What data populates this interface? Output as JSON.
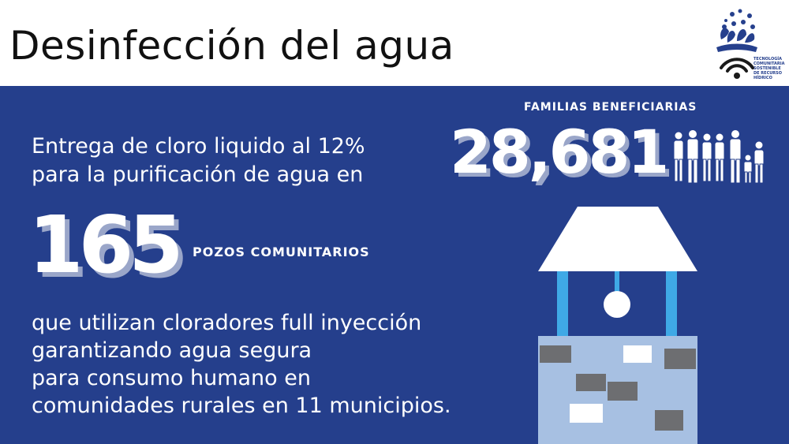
{
  "header": {
    "title": "Desinfección del agua",
    "logo": {
      "icon": "water-splash-wifi-logo",
      "lines": [
        "TECNOLOGÍA",
        "COMUNITARIA",
        "SOSTENIBLE",
        "DE RECURSO",
        "HÍDRICO"
      ]
    }
  },
  "intro": {
    "line1": "Entrega de cloro liquido al 12%",
    "line2": "para la purificación de agua en"
  },
  "wells": {
    "value": "165",
    "label": "POZOS COMUNITARIOS"
  },
  "description": {
    "line1": "que utilizan cloradores full inyección",
    "line2": "garantizando agua segura",
    "line3": "para consumo humano en",
    "line4": "comunidades rurales en 11 municipios."
  },
  "families": {
    "label": "FAMILIAS BENEFICIARIAS",
    "value": "28,681",
    "icon": "family-group-icon"
  },
  "illustration": {
    "icon": "community-well-icon"
  },
  "colors": {
    "background": "#253f8c",
    "header": "#ffffff",
    "shadow": "#9aa6c9",
    "well_roof": "#ffffff",
    "well_posts": "#3fa9e6",
    "well_base": "#a7c0e2",
    "brick_dark": "#6d6e71",
    "brick_light": "#ffffff"
  }
}
